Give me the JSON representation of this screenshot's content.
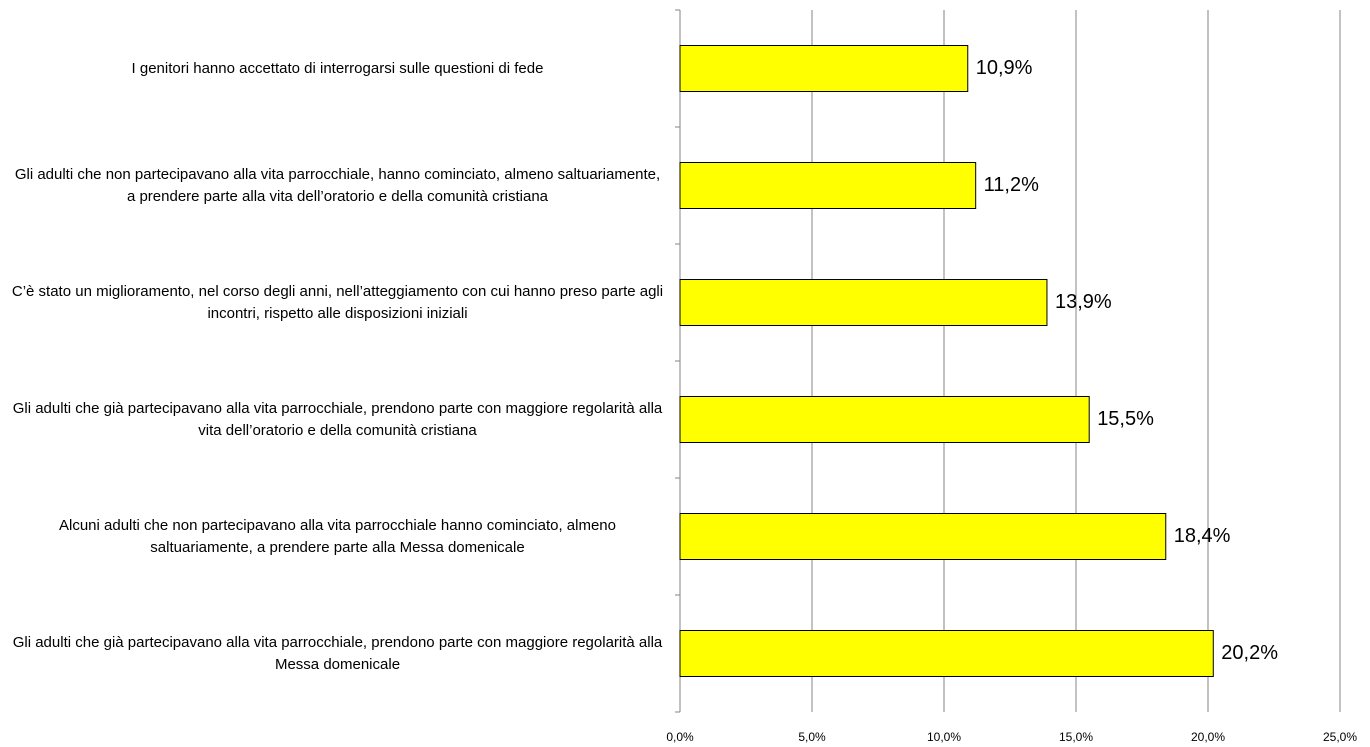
{
  "chart_data": {
    "type": "barh",
    "categories": [
      "I genitori hanno accettato di interrogarsi sulle questioni di fede",
      "Gli adulti che non partecipavano alla vita parrocchiale, hanno cominciato, almeno saltuariamente, a prendere parte alla vita dell’oratorio e della comunità cristiana",
      "C’è stato un miglioramento, nel corso degli anni, nell’atteggiamento con cui hanno preso parte agli incontri, rispetto alle disposizioni iniziali",
      "Gli adulti che già partecipavano alla vita parrocchiale, prendono parte con maggiore regolarità alla vita dell’oratorio e della comunità cristiana",
      "Alcuni adulti che non partecipavano alla vita parrocchiale hanno cominciato, almeno saltuariamente, a prendere parte alla Messa domenicale",
      "Gli adulti che già partecipavano alla vita parrocchiale, prendono parte con maggiore regolarità alla Messa domenicale"
    ],
    "values": [
      10.9,
      11.2,
      13.9,
      15.5,
      18.4,
      20.2
    ],
    "value_labels": [
      "10,9%",
      "11,2%",
      "13,9%",
      "15,5%",
      "18,4%",
      "20,2%"
    ],
    "color": "#ffff00",
    "xlim": [
      0,
      25
    ],
    "xticks": [
      {
        "value": 0,
        "label": "0,0%"
      },
      {
        "value": 5,
        "label": "5,0%"
      },
      {
        "value": 10,
        "label": "10,0%"
      },
      {
        "value": 15,
        "label": "15,0%"
      },
      {
        "value": 20,
        "label": "20,0%"
      },
      {
        "value": 25,
        "label": "25,0%"
      }
    ],
    "grid": true
  }
}
